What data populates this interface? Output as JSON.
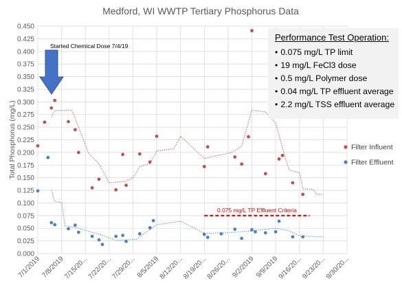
{
  "chart_data": {
    "type": "scatter",
    "title": "Medford, WI WWTP Tertiary Phosphorus Data",
    "ylabel": "Total Phosphorus (mg/L)",
    "xlabel": "",
    "ylim": [
      0,
      0.45
    ],
    "y_ticks": [
      "0.000",
      "0.025",
      "0.050",
      "0.075",
      "0.100",
      "0.125",
      "0.150",
      "0.175",
      "0.200",
      "0.225",
      "0.250",
      "0.275",
      "0.300",
      "0.325",
      "0.350",
      "0.375",
      "0.400",
      "0.425",
      "0.450"
    ],
    "x_ticks": [
      "7/1/2019",
      "7/8/2019",
      "7/15/20...",
      "7/22/20...",
      "7/29/20...",
      "8/5/2019",
      "8/12/20...",
      "8/19/20...",
      "8/26/20...",
      "9/2/2019",
      "9/9/2019",
      "9/16/20...",
      "9/23/20...",
      "9/30/20..."
    ],
    "x_tick_dates": [
      "2019-07-01",
      "2019-07-08",
      "2019-07-15",
      "2019-07-22",
      "2019-07-29",
      "2019-08-05",
      "2019-08-12",
      "2019-08-19",
      "2019-08-26",
      "2019-09-02",
      "2019-09-09",
      "2019-09-16",
      "2019-09-23",
      "2019-09-30"
    ],
    "grid": true,
    "legend_position": "right",
    "series": [
      {
        "name": "Filter Influent",
        "color": "#c0504d",
        "points": [
          {
            "x": "2019-07-01",
            "y": 0.213
          },
          {
            "x": "2019-07-03",
            "y": 0.26
          },
          {
            "x": "2019-07-05",
            "y": 0.288
          },
          {
            "x": "2019-07-06",
            "y": 0.303
          },
          {
            "x": "2019-07-10",
            "y": 0.261
          },
          {
            "x": "2019-07-12",
            "y": 0.245
          },
          {
            "x": "2019-07-13",
            "y": 0.2
          },
          {
            "x": "2019-07-17",
            "y": 0.13
          },
          {
            "x": "2019-07-19",
            "y": 0.147
          },
          {
            "x": "2019-07-24",
            "y": 0.126
          },
          {
            "x": "2019-07-26",
            "y": 0.196
          },
          {
            "x": "2019-07-27",
            "y": 0.135
          },
          {
            "x": "2019-07-31",
            "y": 0.197
          },
          {
            "x": "2019-08-03",
            "y": 0.181
          },
          {
            "x": "2019-08-05",
            "y": 0.232
          },
          {
            "x": "2019-08-19",
            "y": 0.172
          },
          {
            "x": "2019-08-20",
            "y": 0.211
          },
          {
            "x": "2019-08-28",
            "y": 0.191
          },
          {
            "x": "2019-08-30",
            "y": 0.177
          },
          {
            "x": "2019-09-01",
            "y": 0.231
          },
          {
            "x": "2019-09-02",
            "y": 0.441
          },
          {
            "x": "2019-09-06",
            "y": 0.158
          },
          {
            "x": "2019-09-10",
            "y": 0.187
          },
          {
            "x": "2019-09-11",
            "y": 0.194
          },
          {
            "x": "2019-09-14",
            "y": 0.14
          },
          {
            "x": "2019-09-17",
            "y": 0.117
          }
        ]
      },
      {
        "name": "Filter Effluent",
        "color": "#4f81bd",
        "points": [
          {
            "x": "2019-07-01",
            "y": 0.124
          },
          {
            "x": "2019-07-04",
            "y": 0.19
          },
          {
            "x": "2019-07-05",
            "y": 0.061
          },
          {
            "x": "2019-07-06",
            "y": 0.057
          },
          {
            "x": "2019-07-10",
            "y": 0.049
          },
          {
            "x": "2019-07-12",
            "y": 0.056
          },
          {
            "x": "2019-07-13",
            "y": 0.042
          },
          {
            "x": "2019-07-17",
            "y": 0.034
          },
          {
            "x": "2019-07-19",
            "y": 0.027
          },
          {
            "x": "2019-07-20",
            "y": 0.018
          },
          {
            "x": "2019-07-24",
            "y": 0.034
          },
          {
            "x": "2019-07-26",
            "y": 0.036
          },
          {
            "x": "2019-07-27",
            "y": 0.024
          },
          {
            "x": "2019-07-31",
            "y": 0.039
          },
          {
            "x": "2019-08-03",
            "y": 0.051
          },
          {
            "x": "2019-08-04",
            "y": 0.065
          },
          {
            "x": "2019-08-19",
            "y": 0.038
          },
          {
            "x": "2019-08-20",
            "y": 0.032
          },
          {
            "x": "2019-08-24",
            "y": 0.039
          },
          {
            "x": "2019-08-28",
            "y": 0.048
          },
          {
            "x": "2019-08-30",
            "y": 0.03
          },
          {
            "x": "2019-09-02",
            "y": 0.047
          },
          {
            "x": "2019-09-03",
            "y": 0.043
          },
          {
            "x": "2019-09-06",
            "y": 0.041
          },
          {
            "x": "2019-09-09",
            "y": 0.043
          },
          {
            "x": "2019-09-10",
            "y": 0.064
          },
          {
            "x": "2019-09-14",
            "y": 0.033
          },
          {
            "x": "2019-09-17",
            "y": 0.033
          }
        ]
      }
    ],
    "trendlines": [
      {
        "of": "Filter Influent",
        "color": "#c0504d",
        "style": "dotted",
        "points": [
          {
            "x": "2019-07-05",
            "y": 0.27
          },
          {
            "x": "2019-07-06",
            "y": 0.283
          },
          {
            "x": "2019-07-11",
            "y": 0.284
          },
          {
            "x": "2019-07-13",
            "y": 0.25
          },
          {
            "x": "2019-07-16",
            "y": 0.198
          },
          {
            "x": "2019-07-19",
            "y": 0.178
          },
          {
            "x": "2019-07-22",
            "y": 0.14
          },
          {
            "x": "2019-07-27",
            "y": 0.143
          },
          {
            "x": "2019-07-29",
            "y": 0.15
          },
          {
            "x": "2019-07-31",
            "y": 0.172
          },
          {
            "x": "2019-08-03",
            "y": 0.178
          },
          {
            "x": "2019-08-05",
            "y": 0.203
          },
          {
            "x": "2019-08-10",
            "y": 0.207
          },
          {
            "x": "2019-08-12",
            "y": 0.232
          },
          {
            "x": "2019-08-19",
            "y": 0.188
          },
          {
            "x": "2019-08-27",
            "y": 0.2
          },
          {
            "x": "2019-08-30",
            "y": 0.212
          },
          {
            "x": "2019-09-02",
            "y": 0.284
          },
          {
            "x": "2019-09-06",
            "y": 0.28
          },
          {
            "x": "2019-09-09",
            "y": 0.258
          },
          {
            "x": "2019-09-12",
            "y": 0.185
          },
          {
            "x": "2019-09-13",
            "y": 0.165
          },
          {
            "x": "2019-09-16",
            "y": 0.16
          },
          {
            "x": "2019-09-17",
            "y": 0.128
          },
          {
            "x": "2019-09-20",
            "y": 0.127
          },
          {
            "x": "2019-09-21",
            "y": 0.117
          },
          {
            "x": "2019-09-23",
            "y": 0.117
          }
        ]
      },
      {
        "of": "Filter Effluent",
        "color": "#4f81bd",
        "style": "dotted",
        "points": [
          {
            "x": "2019-07-05",
            "y": 0.125
          },
          {
            "x": "2019-07-06",
            "y": 0.103
          },
          {
            "x": "2019-07-08",
            "y": 0.101
          },
          {
            "x": "2019-07-09",
            "y": 0.055
          },
          {
            "x": "2019-07-13",
            "y": 0.05
          },
          {
            "x": "2019-07-16",
            "y": 0.044
          },
          {
            "x": "2019-07-20",
            "y": 0.036
          },
          {
            "x": "2019-07-24",
            "y": 0.026
          },
          {
            "x": "2019-07-30",
            "y": 0.028
          },
          {
            "x": "2019-08-05",
            "y": 0.057
          },
          {
            "x": "2019-08-12",
            "y": 0.064
          },
          {
            "x": "2019-08-19",
            "y": 0.04
          },
          {
            "x": "2019-08-26",
            "y": 0.041
          },
          {
            "x": "2019-09-02",
            "y": 0.045
          },
          {
            "x": "2019-09-09",
            "y": 0.05
          },
          {
            "x": "2019-09-13",
            "y": 0.045
          },
          {
            "x": "2019-09-16",
            "y": 0.035
          },
          {
            "x": "2019-09-23",
            "y": 0.033
          }
        ]
      }
    ],
    "annotations": {
      "chemical_dose": {
        "text": "Started Chemical Dose 7/4/19",
        "x": "2019-07-04",
        "color": "#4472c4"
      },
      "criteria": {
        "text": "0.075 mg/L TP Effluent Criteria",
        "y": 0.075,
        "x_start": "2019-08-19",
        "x_end": "2019-09-19",
        "color": "#e00000"
      }
    }
  },
  "info_box": {
    "title": "Performance Test Operation:",
    "bullet": "•",
    "items": [
      "0.075 mg/L TP limit",
      "19 mg/L FeCl3 dose",
      "0.5 mg/L Polymer dose",
      "0.04 mg/L TP effluent average",
      "2.2 mg/L TSS effluent average"
    ]
  }
}
